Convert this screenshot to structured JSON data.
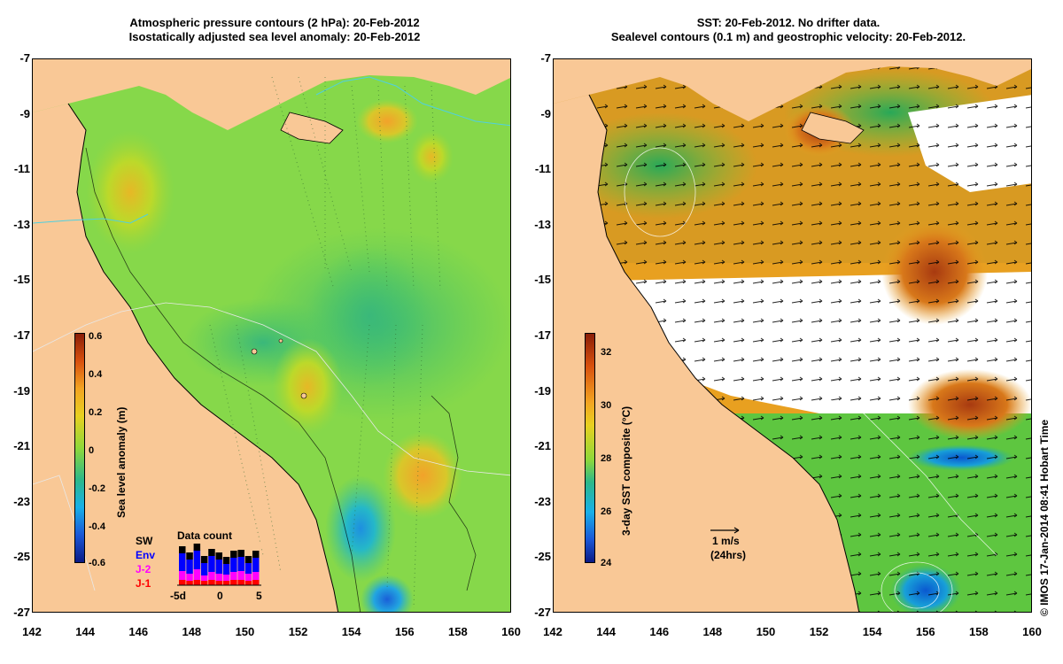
{
  "left_panel": {
    "title_line1": "Atmospheric pressure contours (2 hPa): 20-Feb-2012",
    "title_line2": "Isostatically adjusted sea level anomaly: 20-Feb-2012",
    "colorbar": {
      "title": "Sea level anomaly (m)",
      "ticks": [
        "0.6",
        "0.4",
        "0.2",
        "0",
        "-0.2",
        "-0.4",
        "-0.6"
      ]
    },
    "legend": {
      "entries": [
        "SW",
        "Env",
        "J-2",
        "J-1"
      ],
      "colors": [
        "#000000",
        "#0000ff",
        "#ff00ff",
        "#ff0000"
      ]
    },
    "data_count": {
      "title": "Data count",
      "x_ticks": [
        "-5d",
        "0",
        "5"
      ]
    }
  },
  "right_panel": {
    "title_line1": "SST: 20-Feb-2012. No drifter data.",
    "title_line2": "Sealevel contours (0.1 m) and geostrophic velocity: 20-Feb-2012.",
    "colorbar": {
      "title": "3-day SST composite (°C)",
      "ticks": [
        "32",
        "30",
        "28",
        "26",
        "24"
      ]
    },
    "velocity_scale": {
      "label": "1 m/s",
      "sub": "(24hrs)"
    }
  },
  "axes": {
    "y_ticks": [
      "-7",
      "-9",
      "-11",
      "-13",
      "-15",
      "-17",
      "-19",
      "-21",
      "-23",
      "-25",
      "-27"
    ],
    "x_ticks": [
      "142",
      "144",
      "146",
      "148",
      "150",
      "152",
      "154",
      "156",
      "158",
      "160"
    ]
  },
  "credit": "© IMOS 17-Jan-2014 08:41 Hobart Time",
  "colors": {
    "land": "#f9c896",
    "sla_mid": "#6fd24b",
    "sst_mid": "#e8a020"
  }
}
